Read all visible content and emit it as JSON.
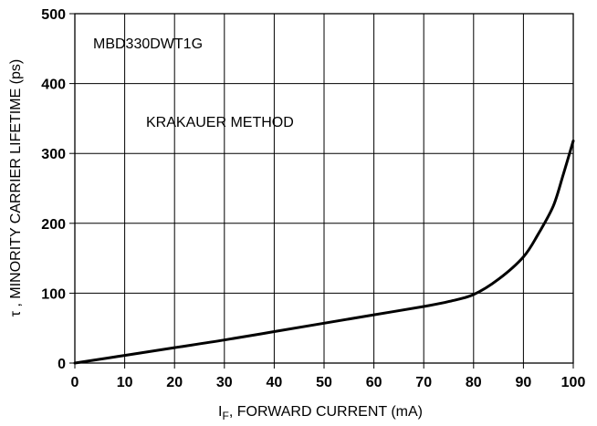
{
  "chart_data": {
    "type": "line",
    "title": "",
    "xlabel_main": "I",
    "xlabel_sub": "F",
    "xlabel_rest": ", FORWARD CURRENT (mA)",
    "ylabel": "τ , MINORITY CARRIER LIFETIME (ps)",
    "xlim": [
      0,
      100
    ],
    "ylim": [
      0,
      500
    ],
    "x_ticks": [
      0,
      10,
      20,
      30,
      40,
      50,
      60,
      70,
      80,
      90,
      100
    ],
    "y_ticks": [
      0,
      100,
      200,
      300,
      400,
      500
    ],
    "grid": true,
    "annotations": [
      "MBD330DWT1G",
      "KRAKAUER METHOD"
    ],
    "series": [
      {
        "x": [
          0,
          10,
          20,
          30,
          40,
          50,
          60,
          70,
          75,
          80,
          85,
          90,
          93,
          96,
          98,
          100
        ],
        "y": [
          0,
          11,
          22,
          33,
          45,
          57,
          69,
          81,
          88,
          98,
          120,
          152,
          185,
          225,
          270,
          318
        ]
      }
    ]
  }
}
